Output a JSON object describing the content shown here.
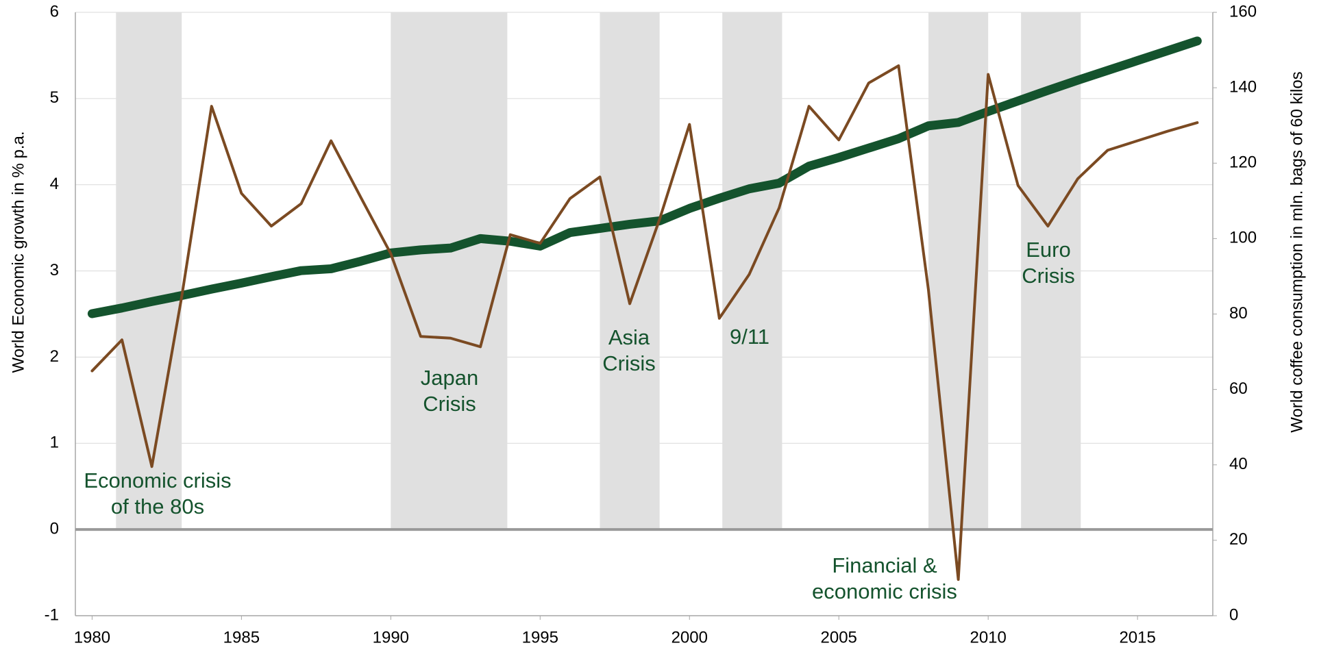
{
  "chart_data": {
    "type": "line",
    "y_axis_label": "World Economic growth in % p.a.",
    "y2_axis_label": "World coffee consumption in mln. bags of 60 kilos",
    "x": [
      1980,
      1981,
      1982,
      1983,
      1984,
      1985,
      1986,
      1987,
      1988,
      1989,
      1990,
      1991,
      1992,
      1993,
      1994,
      1995,
      1996,
      1997,
      1998,
      1999,
      2000,
      2001,
      2002,
      2003,
      2004,
      2005,
      2006,
      2007,
      2008,
      2009,
      2010,
      2011,
      2012,
      2013,
      2014,
      2015,
      2016,
      2017
    ],
    "series": [
      {
        "name": "World Economic growth",
        "color": "#7b4a22",
        "axis": "y",
        "values": [
          1.84,
          2.2,
          0.73,
          2.7,
          4.91,
          3.9,
          3.52,
          3.78,
          4.51,
          3.85,
          3.2,
          2.24,
          2.22,
          2.12,
          3.42,
          3.32,
          3.84,
          4.09,
          2.62,
          3.6,
          4.7,
          2.45,
          2.96,
          3.73,
          4.91,
          4.52,
          5.18,
          5.38,
          2.78,
          -0.58,
          5.28,
          3.99,
          3.52,
          4.07,
          4.4,
          4.51,
          4.62,
          4.72
        ]
      },
      {
        "name": "World coffee consumption",
        "color": "#14532d",
        "axis": "y2",
        "values": [
          80.1,
          81.6,
          83.3,
          84.9,
          86.6,
          88.2,
          89.9,
          91.5,
          92,
          94,
          96.2,
          97,
          97.5,
          100,
          99.3,
          98,
          101.6,
          102.7,
          103.8,
          104.7,
          108,
          110.7,
          113.2,
          114.7,
          119.2,
          121.5,
          124,
          126.5,
          129.9,
          130.8,
          133.7,
          136.5,
          139.3,
          142,
          144.6,
          147.2,
          149.8,
          152.4
        ]
      }
    ],
    "shaded_periods": [
      {
        "start": 1980.8,
        "end": 1983.0,
        "label": [
          "Economic crisis",
          "of the 80s"
        ]
      },
      {
        "start": 1990.0,
        "end": 1993.9,
        "label": [
          "Japan",
          "Crisis"
        ]
      },
      {
        "start": 1997.0,
        "end": 1999.0,
        "label": [
          "Asia",
          "Crisis"
        ]
      },
      {
        "start": 2001.1,
        "end": 2003.1,
        "label": [
          "9/11"
        ]
      },
      {
        "start": 2008.0,
        "end": 2010.0,
        "label": [
          "Financial &",
          "economic crisis"
        ]
      },
      {
        "start": 2011.1,
        "end": 2013.1,
        "label": [
          "Euro",
          "Crisis"
        ]
      }
    ],
    "shade_color": "#e0e0e0",
    "xlim": [
      1979.44,
      2017.52
    ],
    "xticks": [
      1980,
      1985,
      1990,
      1995,
      2000,
      2005,
      2010,
      2015
    ],
    "ylim": [
      -1,
      6
    ],
    "yticks": [
      -1,
      0,
      1,
      2,
      3,
      4,
      5,
      6
    ],
    "y2lim": [
      0,
      160
    ],
    "y2ticks": [
      0,
      20,
      40,
      60,
      80,
      100,
      120,
      140,
      160
    ],
    "grid": true
  }
}
